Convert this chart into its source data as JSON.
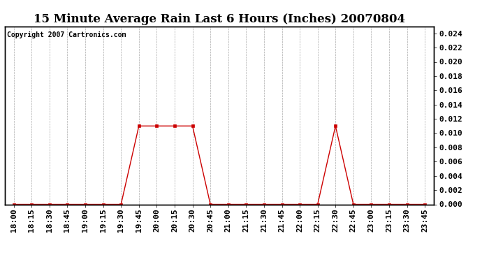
{
  "title": "15 Minute Average Rain Last 6 Hours (Inches) 20070804",
  "copyright": "Copyright 2007 Cartronics.com",
  "line_color": "#cc0000",
  "marker_color": "#cc0000",
  "bg_color": "#ffffff",
  "grid_color": "#aaaaaa",
  "ylim": [
    0,
    0.025
  ],
  "yticks": [
    0.0,
    0.002,
    0.004,
    0.006,
    0.008,
    0.01,
    0.012,
    0.014,
    0.016,
    0.018,
    0.02,
    0.022,
    0.024
  ],
  "x_labels": [
    "18:00",
    "18:15",
    "18:30",
    "18:45",
    "19:00",
    "19:15",
    "19:30",
    "19:45",
    "20:00",
    "20:15",
    "20:30",
    "20:45",
    "21:00",
    "21:15",
    "21:30",
    "21:45",
    "22:00",
    "22:15",
    "22:30",
    "22:45",
    "23:00",
    "23:15",
    "23:30",
    "23:45"
  ],
  "values": [
    0.0,
    0.0,
    0.0,
    0.0,
    0.0,
    0.0,
    0.0,
    0.011,
    0.011,
    0.011,
    0.011,
    0.0,
    0.0,
    0.0,
    0.0,
    0.0,
    0.0,
    0.0,
    0.011,
    0.0,
    0.0,
    0.0,
    0.0,
    0.0
  ],
  "title_fontsize": 12,
  "tick_fontsize": 8,
  "copyright_fontsize": 7
}
